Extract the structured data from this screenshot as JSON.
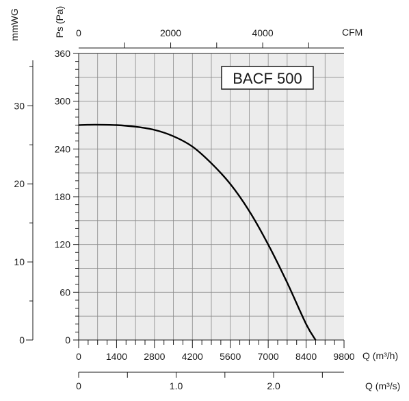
{
  "chart_data": {
    "type": "line",
    "title": "BACF 500",
    "grid": true,
    "series": [
      {
        "x": [
          0,
          600,
          1400,
          2100,
          2800,
          3500,
          4200,
          4900,
          5600,
          6300,
          7000,
          7700,
          8400,
          8750
        ],
        "y": [
          270,
          270.5,
          270,
          268,
          264,
          256,
          243,
          222,
          196,
          162,
          120,
          72,
          20,
          0
        ]
      }
    ],
    "axes": {
      "x_bottom": {
        "label": "Q (m³/h)",
        "min": 0,
        "max": 9800,
        "ticks": [
          "0",
          "1400",
          "2800",
          "4200",
          "5600",
          "7000",
          "8400",
          "9800"
        ]
      },
      "x_cfm": {
        "label": "CFM",
        "min": 0,
        "max": 5768,
        "ticks": [
          "0",
          "2000",
          "4000"
        ]
      },
      "x_m3s": {
        "label": "Q (m³/s)",
        "min": 0,
        "max": 2.722,
        "ticks": [
          "0",
          "1.0",
          "2.0"
        ]
      },
      "y_left": {
        "label": "Ps (Pa)",
        "min": 0,
        "max": 360,
        "ticks": [
          "0",
          "60",
          "120",
          "180",
          "240",
          "300",
          "360"
        ]
      },
      "y_mmwg": {
        "label": "mmWG",
        "min": 0,
        "max": 36.7,
        "ticks": [
          "0",
          "10",
          "20",
          "30"
        ]
      }
    }
  }
}
